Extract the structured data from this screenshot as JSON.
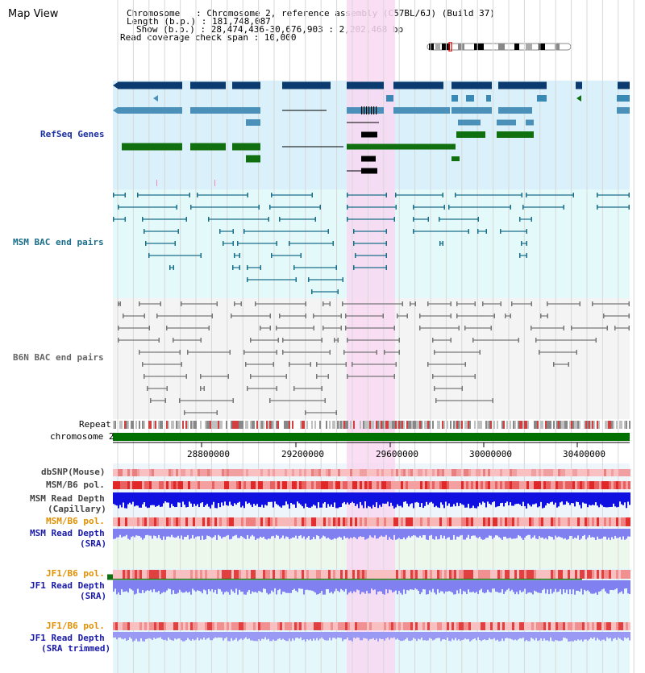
{
  "page_title": "Map View",
  "info": {
    "line1": "Chromosome   : Chromosome 2, reference assembly (C57BL/6J) (Build 37)",
    "line2": "Length (b.p.) : 181,748,087",
    "line3": "Show (b.p.) : 28,474,436-30,676,903 : 2,202,468 bp",
    "line4": "Read coverage check span : 10,000"
  },
  "tracks": {
    "refseq": "RefSeq Genes",
    "msm_bac": "MSM BAC end pairs",
    "b6n_bac": "B6N BAC end pairs",
    "repeat": "Repeat",
    "chromosome": "chromosome 2",
    "dbsnp": "dbSNP(Mouse)",
    "msm_b6_pol_1": "MSM/B6 pol.",
    "msm_depth_cap_1": "MSM Read Depth",
    "msm_depth_cap_2": "(Capillary)",
    "msm_b6_pol_2": "MSM/B6 pol.",
    "msm_depth_sra_1": "MSM Read Depth",
    "msm_depth_sra_2": "(SRA)",
    "jf1_b6_pol_1": "JF1/B6 pol.",
    "jf1_depth_sra_1": "JF1 Read Depth",
    "jf1_depth_sra_2": "(SRA)",
    "jf1_b6_pol_2": "JF1/B6 pol.",
    "jf1_depth_trim_1": "JF1 Read Depth",
    "jf1_depth_trim_2": "(SRA trimmed)"
  },
  "axis_ticks": [
    "28800000",
    "29200000",
    "29600000",
    "30000000",
    "30400000"
  ],
  "colors": {
    "refseq_bg": "#daf0fa",
    "msm_bg": "#e4fafa",
    "b6n_bg": "#f4f4f4",
    "highlight": "#f8d8f2",
    "chromosome": "#007000",
    "refseq_dark": "#0b3a6e",
    "refseq_mid": "#4a90b8",
    "refseq_green": "#107010",
    "snp": "#f0a0a0",
    "pol": "#e84040",
    "depth_blue": "#1010e0",
    "depth_light": "#8080f0"
  }
}
